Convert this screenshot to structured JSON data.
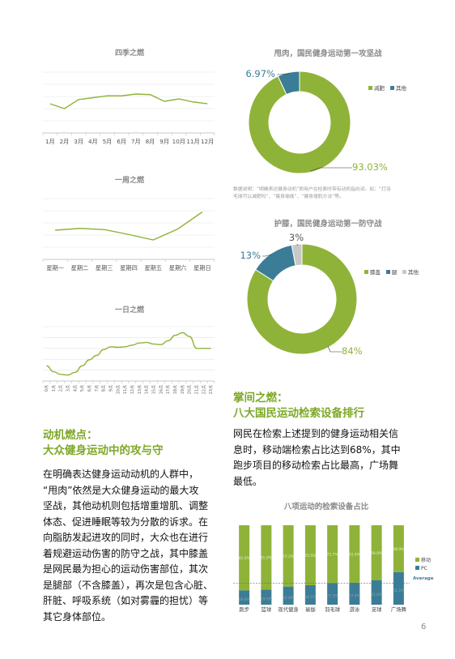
{
  "season_chart": {
    "title": "四季之燃",
    "categories": [
      "1月",
      "2月",
      "3月",
      "4月",
      "5月",
      "6月",
      "7月",
      "8月",
      "9月",
      "10月",
      "11月",
      "12月"
    ],
    "values": [
      48,
      40,
      55,
      58,
      61,
      61,
      64,
      63,
      52,
      56,
      51,
      48
    ]
  },
  "week_chart": {
    "title": "一周之燃",
    "categories": [
      "星期一",
      "星期二",
      "星期三",
      "星期四",
      "星期五",
      "星期六",
      "星期日"
    ],
    "values": [
      48,
      51,
      49,
      41,
      32,
      50,
      78
    ]
  },
  "day_chart": {
    "title": "一日之燃",
    "categories": [
      "0点",
      "1点",
      "2点",
      "3点",
      "4点",
      "5点",
      "6点",
      "7点",
      "8点",
      "9点",
      "10点",
      "11点",
      "12点",
      "13点",
      "14点",
      "15点",
      "16点",
      "17点",
      "18点",
      "19点",
      "20点",
      "21点",
      "22点",
      "23点"
    ],
    "values": [
      28,
      17,
      12,
      11,
      16,
      28,
      39,
      47,
      58,
      63,
      62,
      63,
      66,
      70,
      71,
      68,
      67,
      74,
      84,
      89,
      82,
      60,
      60,
      60
    ]
  },
  "left_section": {
    "heading_line1": "动机燃点：",
    "heading_line2": "大众健身运动中的攻与守",
    "paragraph": "在明确表达健身运动动机的人群中，“甩肉”依然是大众健身运动的最大攻坚战，其他动机则包括增重增肌、调整体态、促进睡眠等较为分散的诉求。在向脂肪发起进攻的同时，大众也在进行着规避运动伤害的防守之战，其中膝盖是网民最为担心的运动伤害部位，其次是腿部（不含膝盖），再次是包含心脏、肝脏、呼吸系统（如对雾霾的担忧）等其它身体部位。",
    "paragraph_lines": [
      "在明确表达健身运动动机的人群中，",
      "“甩肉”依然是大众健身运动的最大攻",
      "坚战，其他动机则包括增重增肌、调整",
      "体态、促进睡眠等较为分散的诉求。在",
      "向脂肪发起进攻的同时，大众也在进行",
      "着规避运动伤害的防守之战，其中膝盖",
      "是网民最为担心的运动伤害部位，其次",
      "是腿部（不含膝盖），再次是包含心脏、",
      "肝脏、呼吸系统（如对雾霾的担忧）等",
      "其它身体部位。"
    ]
  },
  "donut1": {
    "title": "甩肉，国民健身运动第一攻坚战",
    "slices": [
      {
        "name": "减肥",
        "value": 93.03,
        "label": "93.03%",
        "color": "#8fb339"
      },
      {
        "name": "其他",
        "value": 6.97,
        "label": "6.97%",
        "color": "#3b7d96"
      }
    ],
    "note_line1": "数据说明：“明确表达健身动机”即用户在检索时带有动机指向词，如：“打羽",
    "note_line2": "毛球可以减肥吗”、“瘦身瑜伽”、“健身增肌方法”等。"
  },
  "donut2": {
    "title": "护膝，国民健身运动第一防守战",
    "slices": [
      {
        "name": "膝盖",
        "value": 84,
        "label": "84%",
        "color": "#8fb339"
      },
      {
        "name": "腿",
        "value": 13,
        "label": "13%",
        "color": "#3b7d96"
      },
      {
        "name": "其他",
        "value": 3,
        "label": "3%",
        "color": "#c8c8c8"
      }
    ]
  },
  "right_section": {
    "heading_line1": "掌间之燃：",
    "heading_line2": "八大国民运动检索设备排行",
    "paragraph": "网民在检索上述提到的健身运动相关信息时，移动端检索占比达到68%，其中跑步项目的移动检索占比最高，广场舞最低。",
    "paragraph_lines": [
      "网民在检索上述提到的健身运动相关信",
      "息时，移动端检索占比达到68%，其中",
      "跑步项目的移动检索占比最高，广场舞",
      "最低。"
    ]
  },
  "bar_chart": {
    "title": "八项运动的检索设备占比",
    "categories": [
      "跑步",
      "篮球",
      "现代健身",
      "瑜伽",
      "羽毛球",
      "游泳",
      "足球",
      "广场舞"
    ],
    "series": [
      {
        "name": "移动",
        "color": "#8fb339",
        "values": [
          82.0,
          81.0,
          77.2,
          75.5,
          72.7,
          72.4,
          69.0,
          58.9
        ],
        "labels": [
          "82.0%",
          "81.0%",
          "77.2%",
          "75.5%",
          "72.7%",
          "72.4%",
          "69.0%",
          "58.9%"
        ]
      },
      {
        "name": "PC",
        "color": "#3b7d96",
        "values": [
          18.0,
          19.0,
          22.8,
          24.5,
          27.3,
          27.6,
          31.0,
          41.1
        ],
        "labels": [
          "18.0%",
          "19.0%",
          "22.8%",
          "24.5%",
          "27.3%",
          "27.6%",
          "31.0%",
          "41.1%"
        ]
      }
    ],
    "average_label": "Average",
    "average_value": 27
  },
  "page_number": "6"
}
